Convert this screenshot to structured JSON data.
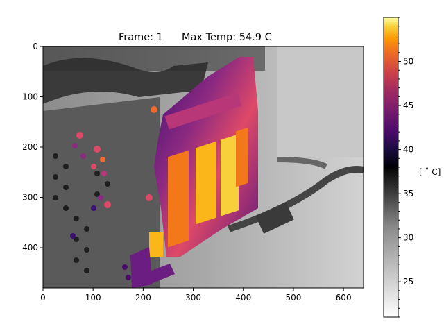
{
  "chart_data": {
    "type": "heatmap",
    "title_frame_label": "Frame: 1",
    "title_temp_label": "Max Temp: 54.9 C",
    "x_ticks": [
      0,
      100,
      200,
      300,
      400,
      500,
      600
    ],
    "y_ticks": [
      0,
      100,
      200,
      300,
      400
    ],
    "xlim": [
      0,
      640
    ],
    "ylim": [
      480,
      0
    ],
    "colorbar": {
      "label": "[$^\\circ$C]",
      "label_display": "[ ˚ C]",
      "range": [
        21.0,
        55.0
      ],
      "ticks": [
        25,
        30,
        35,
        40,
        45,
        50
      ],
      "threshold": 38.0,
      "lower_colormap": "gray_r",
      "upper_colormap": "inferno"
    },
    "max_temp": 54.9,
    "frame": 1
  }
}
